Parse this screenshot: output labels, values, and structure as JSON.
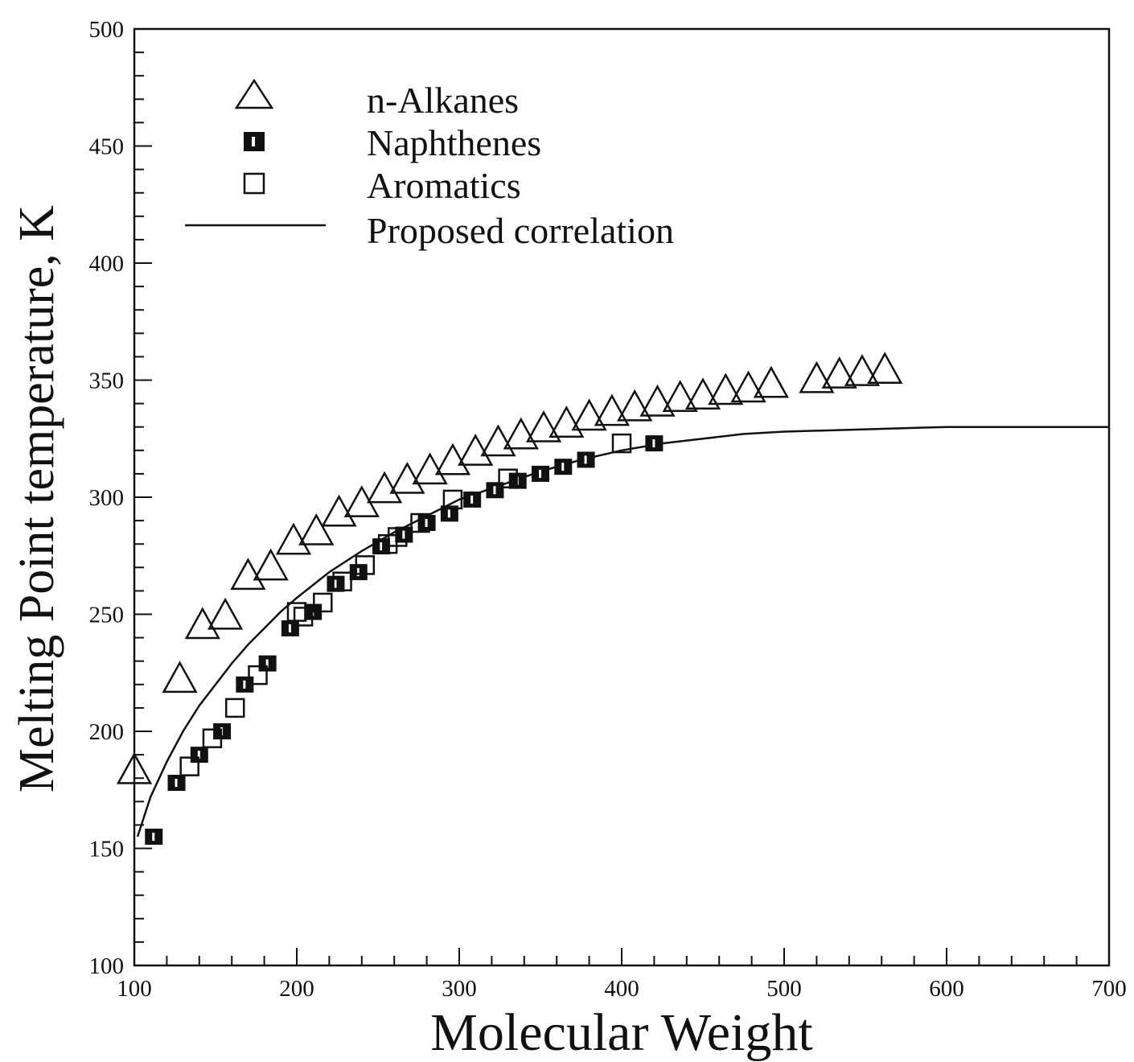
{
  "chart_data": {
    "type": "scatter",
    "xlabel": "Molecular Weight",
    "ylabel": "Melting Point temperature, K",
    "xlim": [
      100,
      700
    ],
    "ylim": [
      100,
      500
    ],
    "x_ticks": [
      "100",
      "200",
      "300",
      "400",
      "500",
      "600",
      "700"
    ],
    "y_ticks": [
      "100",
      "150",
      "200",
      "250",
      "300",
      "350",
      "400",
      "450",
      "500"
    ],
    "legend_position": "top-left",
    "grid": false,
    "series": [
      {
        "name": "n-Alkanes",
        "marker": "triangle-open",
        "color": "#111111",
        "points": [
          [
            100,
            182
          ],
          [
            128,
            221
          ],
          [
            142,
            244
          ],
          [
            156,
            248
          ],
          [
            170,
            265
          ],
          [
            184,
            269
          ],
          [
            198,
            280
          ],
          [
            212,
            284
          ],
          [
            226,
            292
          ],
          [
            240,
            296
          ],
          [
            254,
            302
          ],
          [
            268,
            306
          ],
          [
            282,
            310
          ],
          [
            296,
            314
          ],
          [
            310,
            318
          ],
          [
            324,
            322
          ],
          [
            338,
            325
          ],
          [
            352,
            328
          ],
          [
            366,
            330
          ],
          [
            380,
            333
          ],
          [
            394,
            335
          ],
          [
            408,
            337
          ],
          [
            422,
            339
          ],
          [
            436,
            341
          ],
          [
            450,
            342
          ],
          [
            464,
            344
          ],
          [
            478,
            345
          ],
          [
            492,
            347
          ],
          [
            520,
            349
          ],
          [
            534,
            351
          ],
          [
            548,
            352
          ],
          [
            562,
            353
          ]
        ]
      },
      {
        "name": "Naphthenes",
        "marker": "square-filled",
        "color": "#111111",
        "points": [
          [
            112,
            155
          ],
          [
            126,
            178
          ],
          [
            140,
            190
          ],
          [
            154,
            200
          ],
          [
            168,
            220
          ],
          [
            182,
            229
          ],
          [
            196,
            244
          ],
          [
            210,
            251
          ],
          [
            224,
            263
          ],
          [
            238,
            268
          ],
          [
            252,
            279
          ],
          [
            266,
            284
          ],
          [
            280,
            289
          ],
          [
            294,
            293
          ],
          [
            308,
            299
          ],
          [
            322,
            303
          ],
          [
            336,
            307
          ],
          [
            350,
            310
          ],
          [
            364,
            313
          ],
          [
            378,
            316
          ],
          [
            420,
            323
          ]
        ]
      },
      {
        "name": "Aromatics",
        "marker": "square-open",
        "color": "#111111",
        "points": [
          [
            134,
            185
          ],
          [
            148,
            197
          ],
          [
            162,
            210
          ],
          [
            176,
            224
          ],
          [
            200,
            251
          ],
          [
            204,
            249
          ],
          [
            216,
            255
          ],
          [
            228,
            264
          ],
          [
            242,
            271
          ],
          [
            256,
            280
          ],
          [
            262,
            283
          ],
          [
            276,
            289
          ],
          [
            296,
            299
          ],
          [
            330,
            308
          ],
          [
            400,
            323
          ]
        ]
      },
      {
        "name": "Proposed correlation",
        "marker": "line",
        "color": "#111111",
        "points": [
          [
            102,
            155
          ],
          [
            110,
            172
          ],
          [
            120,
            187
          ],
          [
            130,
            200
          ],
          [
            140,
            211
          ],
          [
            150,
            220
          ],
          [
            160,
            229
          ],
          [
            170,
            237
          ],
          [
            180,
            244
          ],
          [
            190,
            251
          ],
          [
            200,
            257
          ],
          [
            220,
            268
          ],
          [
            240,
            277
          ],
          [
            260,
            285
          ],
          [
            280,
            292
          ],
          [
            300,
            299
          ],
          [
            325,
            305
          ],
          [
            350,
            311
          ],
          [
            375,
            316
          ],
          [
            400,
            320
          ],
          [
            425,
            323
          ],
          [
            450,
            325
          ],
          [
            475,
            327
          ],
          [
            500,
            328
          ],
          [
            550,
            329
          ],
          [
            600,
            330
          ],
          [
            650,
            330
          ],
          [
            700,
            330
          ]
        ]
      }
    ]
  }
}
